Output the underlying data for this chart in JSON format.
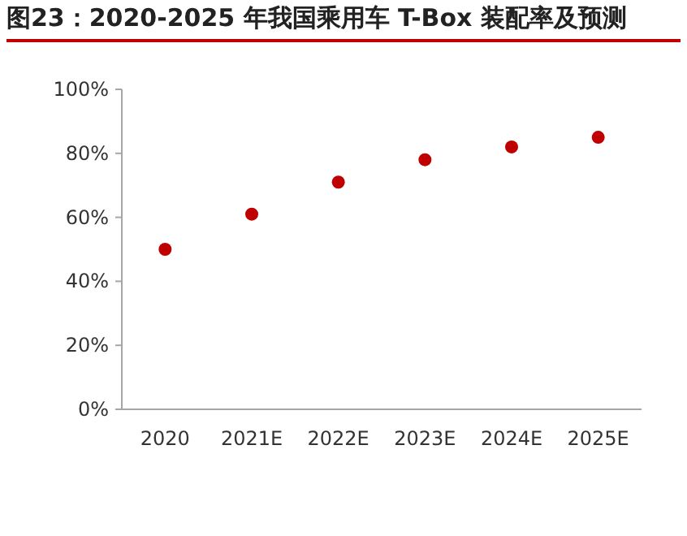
{
  "chart_data": {
    "type": "scatter",
    "title": "图23：2020-2025 年我国乘用车 T-Box 装配率及预测",
    "categories": [
      "2020",
      "2021E",
      "2022E",
      "2023E",
      "2024E",
      "2025E"
    ],
    "series": [
      {
        "color": "#c00000",
        "values": [
          50,
          61,
          71,
          78,
          82,
          85
        ]
      }
    ],
    "ylim": [
      0,
      100
    ],
    "yticks": [
      {
        "value": 0,
        "label": "0%"
      },
      {
        "value": 20,
        "label": "20%"
      },
      {
        "value": 40,
        "label": "40%"
      },
      {
        "value": 60,
        "label": "60%"
      },
      {
        "value": 80,
        "label": "80%"
      },
      {
        "value": 100,
        "label": "100%"
      }
    ],
    "grid": false,
    "marker": "circle"
  }
}
